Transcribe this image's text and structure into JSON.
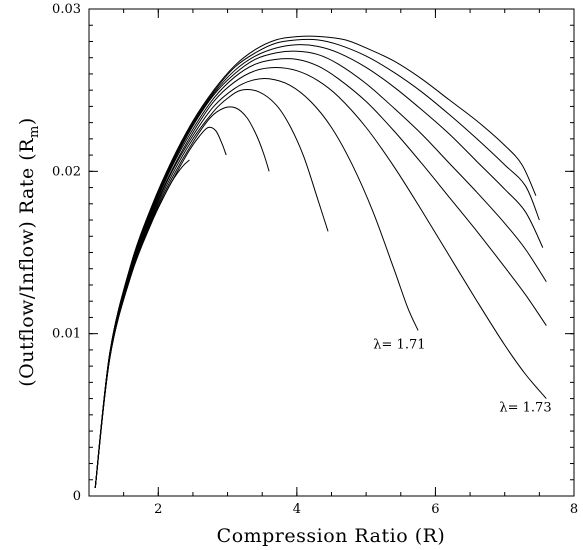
{
  "chart_data": {
    "type": "line",
    "title": "",
    "xlabel": "Compression Ratio (R)",
    "ylabel_main": "(Outflow/Inflow) Rate (R",
    "ylabel_sub": "m",
    "ylabel_close": ")",
    "xlim": [
      1.0,
      8.0
    ],
    "ylim": [
      0.0,
      0.03
    ],
    "x_ticks": [
      2,
      4,
      6,
      8
    ],
    "x_tick_labels": [
      "2",
      "4",
      "6",
      "8"
    ],
    "y_ticks": [
      0,
      0.01,
      0.02,
      0.03
    ],
    "y_tick_labels": [
      "0",
      "0.01",
      "0.02",
      "0.03"
    ],
    "grid": false,
    "series": [
      {
        "x": [
          1.09,
          1.3,
          1.6,
          1.9,
          2.1,
          2.2,
          2.35,
          2.45
        ],
        "y": [
          0.0005,
          0.0085,
          0.0135,
          0.0168,
          0.0186,
          0.0194,
          0.0203,
          0.0207
        ]
      },
      {
        "x": [
          1.09,
          1.3,
          1.6,
          1.9,
          2.2,
          2.45,
          2.6,
          2.72,
          2.83,
          2.92,
          2.98
        ],
        "y": [
          0.0005,
          0.0085,
          0.0135,
          0.0169,
          0.0194,
          0.0213,
          0.0222,
          0.0227,
          0.0225,
          0.0217,
          0.021
        ]
      },
      {
        "x": [
          1.09,
          1.3,
          1.6,
          1.9,
          2.2,
          2.5,
          2.75,
          2.95,
          3.12,
          3.28,
          3.42,
          3.52,
          3.6
        ],
        "y": [
          0.0005,
          0.0085,
          0.0136,
          0.017,
          0.0196,
          0.0218,
          0.0233,
          0.0239,
          0.0239,
          0.0233,
          0.0222,
          0.0211,
          0.02
        ]
      },
      {
        "x": [
          1.09,
          1.3,
          1.6,
          1.9,
          2.2,
          2.5,
          2.8,
          3.0,
          3.2,
          3.45,
          3.7,
          3.9,
          4.1,
          4.3,
          4.45
        ],
        "y": [
          0.0005,
          0.0086,
          0.0137,
          0.0171,
          0.0198,
          0.022,
          0.0237,
          0.0245,
          0.025,
          0.0249,
          0.0241,
          0.0228,
          0.0209,
          0.0183,
          0.0163
        ]
      },
      {
        "x": [
          1.09,
          1.3,
          1.6,
          1.9,
          2.2,
          2.5,
          2.8,
          3.1,
          3.35,
          3.6,
          3.9,
          4.2,
          4.5,
          4.8,
          5.1,
          5.4,
          5.6,
          5.75
        ],
        "y": [
          0.0005,
          0.0086,
          0.0138,
          0.0172,
          0.02,
          0.0222,
          0.024,
          0.0251,
          0.0256,
          0.0257,
          0.0253,
          0.0243,
          0.0227,
          0.0204,
          0.0175,
          0.014,
          0.0116,
          0.0102
        ]
      },
      {
        "x": [
          1.09,
          1.3,
          1.6,
          1.9,
          2.2,
          2.5,
          2.8,
          3.1,
          3.4,
          3.7,
          4.0,
          4.3,
          4.6,
          5.0,
          5.4,
          5.8,
          6.2,
          6.6,
          7.0,
          7.3,
          7.6
        ],
        "y": [
          0.0005,
          0.0087,
          0.0139,
          0.0173,
          0.0201,
          0.0224,
          0.0243,
          0.0255,
          0.0262,
          0.0264,
          0.0262,
          0.0256,
          0.0246,
          0.0227,
          0.0203,
          0.0176,
          0.0148,
          0.012,
          0.0093,
          0.0075,
          0.006
        ]
      },
      {
        "x": [
          1.09,
          1.3,
          1.6,
          1.9,
          2.2,
          2.5,
          2.8,
          3.1,
          3.4,
          3.7,
          4.0,
          4.3,
          4.6,
          5.0,
          5.4,
          5.8,
          6.2,
          6.6,
          7.0,
          7.3,
          7.6
        ],
        "y": [
          0.0005,
          0.0087,
          0.014,
          0.0174,
          0.0203,
          0.0226,
          0.0245,
          0.0258,
          0.0266,
          0.0269,
          0.0269,
          0.0265,
          0.0257,
          0.0243,
          0.0225,
          0.0205,
          0.0184,
          0.0163,
          0.0141,
          0.0124,
          0.0105
        ]
      },
      {
        "x": [
          1.09,
          1.3,
          1.6,
          1.9,
          2.2,
          2.5,
          2.8,
          3.1,
          3.4,
          3.7,
          4.0,
          4.3,
          4.6,
          5.0,
          5.4,
          5.8,
          6.2,
          6.6,
          7.0,
          7.3,
          7.6
        ],
        "y": [
          0.0005,
          0.0087,
          0.014,
          0.0175,
          0.0204,
          0.0228,
          0.0247,
          0.026,
          0.0269,
          0.0273,
          0.0274,
          0.0272,
          0.0266,
          0.0254,
          0.0239,
          0.0223,
          0.0205,
          0.0187,
          0.0168,
          0.0152,
          0.0132
        ]
      },
      {
        "x": [
          1.09,
          1.3,
          1.6,
          1.9,
          2.2,
          2.5,
          2.8,
          3.1,
          3.4,
          3.7,
          4.0,
          4.3,
          4.6,
          5.0,
          5.4,
          5.8,
          6.2,
          6.6,
          7.0,
          7.3,
          7.55
        ],
        "y": [
          0.0005,
          0.0088,
          0.0141,
          0.0176,
          0.0205,
          0.0229,
          0.0248,
          0.0262,
          0.0271,
          0.0276,
          0.0278,
          0.0277,
          0.0273,
          0.0264,
          0.0252,
          0.0238,
          0.0223,
          0.0206,
          0.0189,
          0.0175,
          0.0153
        ]
      },
      {
        "x": [
          1.09,
          1.3,
          1.6,
          1.9,
          2.2,
          2.5,
          2.8,
          3.1,
          3.4,
          3.7,
          4.0,
          4.3,
          4.6,
          5.0,
          5.4,
          5.8,
          6.2,
          6.6,
          7.0,
          7.3,
          7.5
        ],
        "y": [
          0.0005,
          0.0088,
          0.0141,
          0.0177,
          0.0206,
          0.023,
          0.0249,
          0.0264,
          0.0273,
          0.0279,
          0.0281,
          0.0281,
          0.0278,
          0.0271,
          0.0261,
          0.0249,
          0.0235,
          0.022,
          0.0204,
          0.0191,
          0.017
        ]
      },
      {
        "x": [
          1.09,
          1.3,
          1.6,
          1.9,
          2.2,
          2.5,
          2.8,
          3.1,
          3.4,
          3.7,
          4.0,
          4.35,
          4.7,
          5.0,
          5.4,
          5.8,
          6.2,
          6.6,
          7.0,
          7.25,
          7.45
        ],
        "y": [
          0.0005,
          0.0088,
          0.0142,
          0.0178,
          0.0207,
          0.0231,
          0.025,
          0.0265,
          0.0275,
          0.0281,
          0.0283,
          0.0283,
          0.0281,
          0.0276,
          0.0268,
          0.0257,
          0.0244,
          0.0231,
          0.0216,
          0.0204,
          0.0185
        ]
      }
    ],
    "annotations": [
      {
        "text": "λ= 1.71",
        "x": 5.48,
        "y": 0.0091
      },
      {
        "text": "λ= 1.73",
        "x": 7.3,
        "y": 0.0052
      }
    ]
  }
}
